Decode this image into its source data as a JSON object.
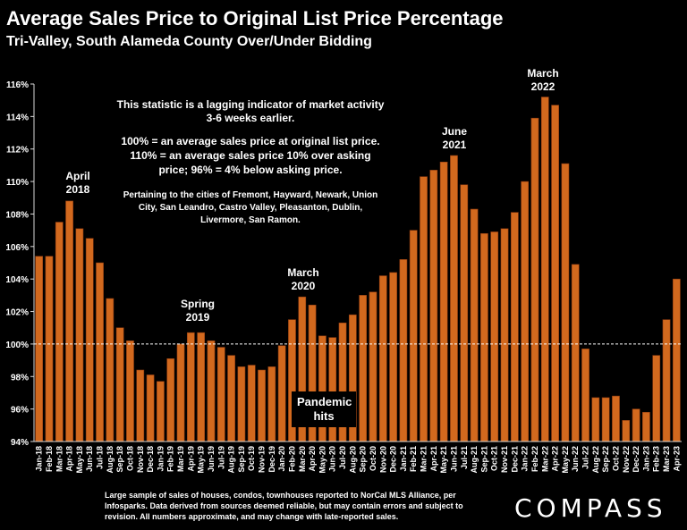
{
  "title": "Average Sales Price to Original List Price Percentage",
  "subtitle": "Tri-Valley, South Alameda County Over/Under Bidding",
  "notes": {
    "main": "This statistic is a lagging indicator of market activity 3-6 weeks earlier.",
    "definition": "100% = an average sales price at original list price. 110% = an average sales price 10% over asking price; 96% = 4% below asking price.",
    "cities": "Pertaining to the cities of Fremont, Hayward, Newark, Union City, San Leandro, Castro Valley, Pleasanton, Dublin, Livermore, San Ramon."
  },
  "callouts": {
    "april2018": "April\n2018",
    "spring2019": "Spring\n2019",
    "march2020": "March\n2020",
    "pandemic": "Pandemic\nhits",
    "june2021": "June\n2021",
    "march2022": "March\n2022"
  },
  "footnote": "Large sample of sales of houses, condos, townhouses reported to NorCal MLS Alliance, per Infosparks. Data derived from sources deemed reliable, but may contain errors and subject to revision. All numbers approximate, and may change with late-reported sales.",
  "logo": "COMPASS",
  "colors": {
    "bar": "#D2691E",
    "bar_stroke": "#8B3A10",
    "background": "#000000",
    "reference_line": "#FFFFFF"
  },
  "chart_data": {
    "type": "bar",
    "ylim": [
      94,
      116
    ],
    "ytick_labels": [
      "94%",
      "96%",
      "98%",
      "100%",
      "102%",
      "104%",
      "106%",
      "108%",
      "110%",
      "112%",
      "114%",
      "116%"
    ],
    "reference_line": 100,
    "grid": false,
    "categories": [
      "Jan-18",
      "Feb-18",
      "Mar-18",
      "Apr-18",
      "May-18",
      "Jun-18",
      "Jul-18",
      "Aug-18",
      "Sep-18",
      "Oct-18",
      "Nov-18",
      "Dec-18",
      "Jan-19",
      "Feb-19",
      "Mar-19",
      "Apr-19",
      "May-19",
      "Jun-19",
      "Jul-19",
      "Aug-19",
      "Sep-19",
      "Oct-19",
      "Nov-19",
      "Dec-19",
      "Jan-20",
      "Feb-20",
      "Mar-20",
      "Apr-20",
      "May-20",
      "Jun-20",
      "Jul-20",
      "Aug-20",
      "Sep-20",
      "Oct-20",
      "Nov-20",
      "Dec-20",
      "Jan-21",
      "Feb-21",
      "Mar-21",
      "Apr-21",
      "May-21",
      "Jun-21",
      "Jul-21",
      "Aug-21",
      "Sep-21",
      "Oct-21",
      "Nov-21",
      "Dec-21",
      "Jan-22",
      "Feb-22",
      "Mar-22",
      "Apr-22",
      "May-22",
      "Jun-22",
      "Jul-22",
      "Aug-22",
      "Sep-22",
      "Oct-22",
      "Nov-22",
      "Dec-22",
      "Jan-23",
      "Feb-23",
      "Mar-23",
      "Apr-23"
    ],
    "values": [
      105.4,
      105.4,
      107.5,
      108.8,
      107.1,
      106.5,
      105.0,
      102.8,
      101.0,
      100.2,
      98.4,
      98.1,
      97.7,
      99.1,
      100.0,
      100.7,
      100.7,
      100.2,
      99.8,
      99.3,
      98.6,
      98.7,
      98.4,
      98.6,
      99.9,
      101.5,
      102.9,
      102.4,
      100.5,
      100.4,
      101.3,
      101.8,
      103.0,
      103.2,
      104.2,
      104.4,
      105.2,
      107.0,
      110.3,
      110.7,
      111.2,
      111.6,
      109.8,
      108.3,
      106.8,
      106.9,
      107.1,
      108.1,
      110.0,
      113.9,
      115.2,
      114.7,
      111.1,
      104.9,
      99.7,
      96.7,
      96.7,
      96.8,
      95.3,
      96.0,
      95.8,
      99.3,
      101.5,
      104.0
    ]
  }
}
